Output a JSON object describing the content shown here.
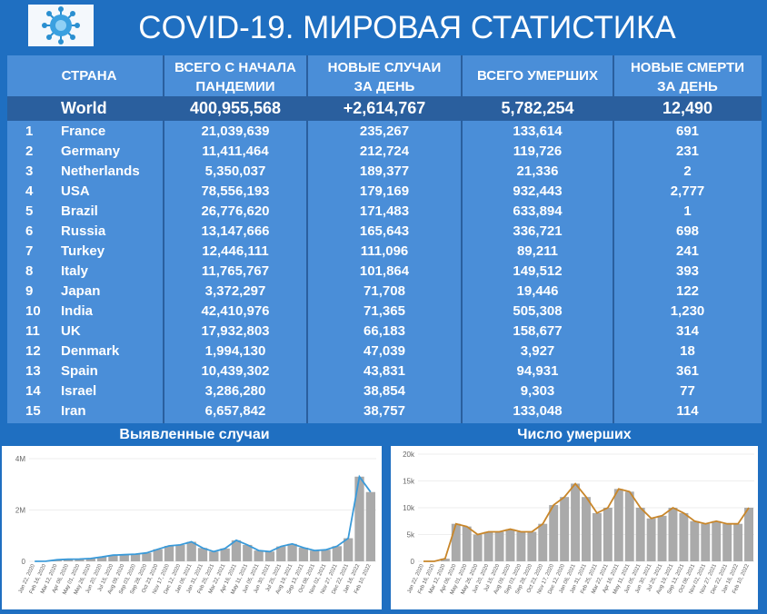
{
  "header": {
    "title": "COVID-19. МИРОВАЯ СТАТИСТИКА"
  },
  "table": {
    "columns": {
      "country": "СТРАНА",
      "total_line1": "ВСЕГО С НАЧАЛА",
      "total_line2": "ПАНДЕМИИ",
      "new_line1": "НОВЫЕ СЛУЧАИ",
      "new_line2": "ЗА ДЕНЬ",
      "deaths": "ВСЕГО УМЕРШИХ",
      "newd_line1": "НОВЫЕ СМЕРТИ",
      "newd_line2": "ЗА ДЕНЬ"
    },
    "world": {
      "name": "World",
      "total": "400,955,568",
      "new": "+2,614,767",
      "deaths": "5,782,254",
      "new_deaths": "12,490"
    },
    "rows": [
      {
        "rank": "1",
        "country": "France",
        "total": "21,039,639",
        "new": "235,267",
        "deaths": "133,614",
        "new_deaths": "691"
      },
      {
        "rank": "2",
        "country": "Germany",
        "total": "11,411,464",
        "new": "212,724",
        "deaths": "119,726",
        "new_deaths": "231"
      },
      {
        "rank": "3",
        "country": "Netherlands",
        "total": "5,350,037",
        "new": "189,377",
        "deaths": "21,336",
        "new_deaths": "2"
      },
      {
        "rank": "4",
        "country": "USA",
        "total": "78,556,193",
        "new": "179,169",
        "deaths": "932,443",
        "new_deaths": "2,777"
      },
      {
        "rank": "5",
        "country": "Brazil",
        "total": "26,776,620",
        "new": "171,483",
        "deaths": "633,894",
        "new_deaths": "1"
      },
      {
        "rank": "6",
        "country": "Russia",
        "total": "13,147,666",
        "new": "165,643",
        "deaths": "336,721",
        "new_deaths": "698"
      },
      {
        "rank": "7",
        "country": "Turkey",
        "total": "12,446,111",
        "new": "111,096",
        "deaths": "89,211",
        "new_deaths": "241"
      },
      {
        "rank": "8",
        "country": "Italy",
        "total": "11,765,767",
        "new": "101,864",
        "deaths": "149,512",
        "new_deaths": "393"
      },
      {
        "rank": "9",
        "country": "Japan",
        "total": "3,372,297",
        "new": "71,708",
        "deaths": "19,446",
        "new_deaths": "122"
      },
      {
        "rank": "10",
        "country": "India",
        "total": "42,410,976",
        "new": "71,365",
        "deaths": "505,308",
        "new_deaths": "1,230"
      },
      {
        "rank": "11",
        "country": "UK",
        "total": "17,932,803",
        "new": "66,183",
        "deaths": "158,677",
        "new_deaths": "314"
      },
      {
        "rank": "12",
        "country": "Denmark",
        "total": "1,994,130",
        "new": "47,039",
        "deaths": "3,927",
        "new_deaths": "18"
      },
      {
        "rank": "13",
        "country": "Spain",
        "total": "10,439,302",
        "new": "43,831",
        "deaths": "94,931",
        "new_deaths": "361"
      },
      {
        "rank": "14",
        "country": "Israel",
        "total": "3,286,280",
        "new": "38,854",
        "deaths": "9,303",
        "new_deaths": "77"
      },
      {
        "rank": "15",
        "country": "Iran",
        "total": "6,657,842",
        "new": "38,757",
        "deaths": "133,048",
        "new_deaths": "114"
      }
    ]
  },
  "charts": {
    "cases_title": "Выявленные случаи",
    "deaths_title": "Число умерших"
  },
  "colors": {
    "background": "#1f6fc1",
    "table": "#4a8ed8",
    "world_row": "#2a5f9e",
    "bars": "#aaaaaa",
    "cases_line": "#3a9ad9",
    "deaths_line": "#c8862a"
  },
  "chart_data": [
    {
      "type": "bar",
      "title": "Выявленные случаи",
      "yticks": [
        "4M",
        "2M",
        "0"
      ],
      "ylim": [
        0,
        4000000
      ],
      "x": [
        "Jan 22, 2020",
        "Feb 16, 2020",
        "Mar 12, 2020",
        "Apr 06, 2020",
        "May 01, 2020",
        "May 26, 2020",
        "Jun 20, 2020",
        "Jul 15, 2020",
        "Aug 09, 2020",
        "Sep 03, 2020",
        "Sep 28, 2020",
        "Oct 23, 2020",
        "Nov 17, 2020",
        "Dec 12, 2020",
        "Jan 06, 2021",
        "Jan 31, 2021",
        "Feb 25, 2021",
        "Mar 22, 2021",
        "Apr 16, 2021",
        "May 11, 2021",
        "Jun 05, 2021",
        "Jun 30, 2021",
        "Jul 25, 2021",
        "Aug 19, 2021",
        "Sep 13, 2021",
        "Oct 08, 2021",
        "Nov 02, 2021",
        "Nov 27, 2021",
        "Dec 22, 2021",
        "Jan 16, 2022",
        "Feb 10, 2022"
      ],
      "values": [
        0,
        2000,
        60000,
        80000,
        90000,
        110000,
        170000,
        240000,
        260000,
        280000,
        330000,
        470000,
        600000,
        640000,
        760000,
        520000,
        380000,
        500000,
        820000,
        640000,
        420000,
        380000,
        580000,
        680000,
        530000,
        420000,
        450000,
        590000,
        900000,
        3300000,
        2700000
      ],
      "series": [
        {
          "name": "",
          "style": "bars"
        },
        {
          "name": "",
          "style": "line"
        }
      ]
    },
    {
      "type": "bar",
      "title": "Число умерших",
      "yticks": [
        "20k",
        "15k",
        "10k",
        "5k",
        "0"
      ],
      "ylim": [
        0,
        20000
      ],
      "x": [
        "Jan 22, 2020",
        "Feb 16, 2020",
        "Mar 12, 2020",
        "Apr 06, 2020",
        "May 01, 2020",
        "May 26, 2020",
        "Jun 20, 2020",
        "Jul 15, 2020",
        "Aug 09, 2020",
        "Sep 03, 2020",
        "Sep 28, 2020",
        "Oct 23, 2020",
        "Nov 17, 2020",
        "Dec 12, 2020",
        "Jan 06, 2021",
        "Jan 31, 2021",
        "Feb 25, 2021",
        "Mar 22, 2021",
        "Apr 16, 2021",
        "May 11, 2021",
        "Jun 05, 2021",
        "Jun 30, 2021",
        "Jul 25, 2021",
        "Aug 19, 2021",
        "Sep 13, 2021",
        "Oct 08, 2021",
        "Nov 02, 2021",
        "Nov 27, 2021",
        "Dec 22, 2021",
        "Jan 16, 2022",
        "Feb 10, 2022"
      ],
      "values": [
        0,
        0,
        500,
        7000,
        6500,
        5000,
        5500,
        5500,
        6000,
        5500,
        5500,
        7000,
        10500,
        12000,
        14500,
        12000,
        9000,
        10000,
        13500,
        13000,
        10000,
        8000,
        8500,
        10000,
        9000,
        7500,
        7000,
        7500,
        7000,
        7000,
        10000
      ],
      "series": [
        {
          "name": "",
          "style": "bars"
        },
        {
          "name": "",
          "style": "line"
        }
      ]
    }
  ]
}
